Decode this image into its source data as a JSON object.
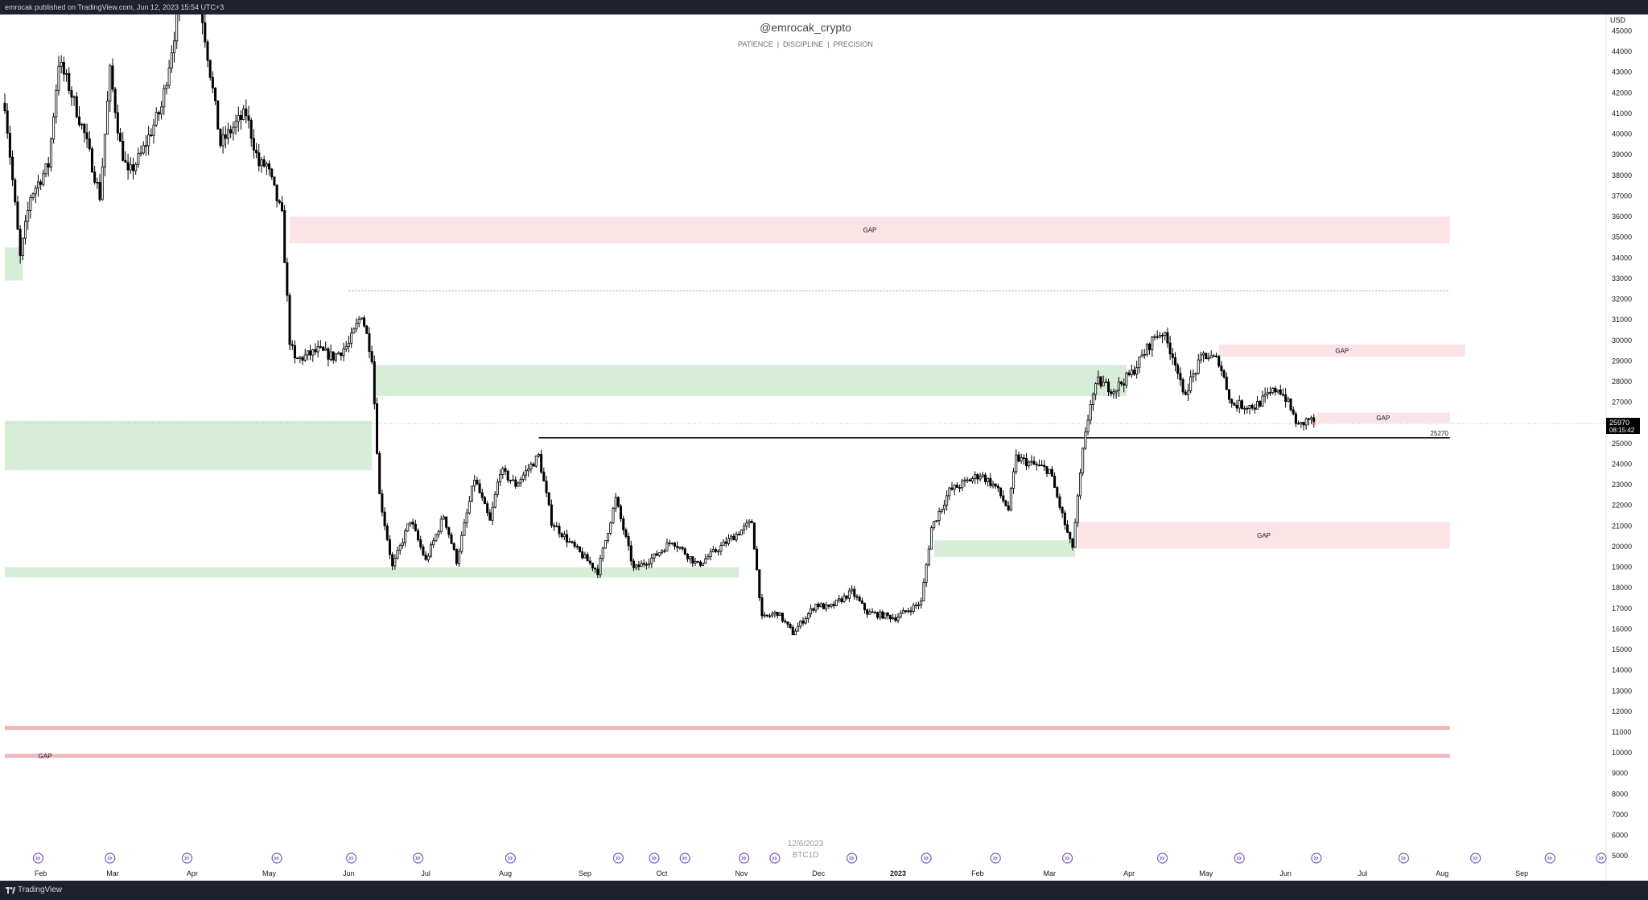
{
  "publish_info": "emrocak published on TradingView.com, Jun 12, 2023 15:54 UTC+3",
  "brand": "TradingView",
  "watermark": {
    "title": "@emrocak_crypto",
    "subtitle": "PATIENCE  |  DISCIPLINE  |  PRECISION"
  },
  "overlay_date": "12/6/2023",
  "overlay_symbol": "BTC1D",
  "colors": {
    "gap_red": "#fbe3e6",
    "gap_red_strong": "#f1b7bd",
    "zone_green": "#d6edd8",
    "up_candle": "#ffffff",
    "down_candle": "#000000",
    "price_tag_bg": "#000000",
    "event_icon": "#7e57c2"
  },
  "chart_data": {
    "type": "candlestick",
    "symbol": "BTC",
    "timeframe": "1D",
    "currency": "USD",
    "ylim": [
      4500,
      45800
    ],
    "yticks": [
      5000,
      6000,
      7000,
      8000,
      9000,
      10000,
      11000,
      12000,
      13000,
      14000,
      15000,
      16000,
      17000,
      18000,
      19000,
      20000,
      21000,
      22000,
      23000,
      24000,
      25000,
      26000,
      27000,
      28000,
      29000,
      30000,
      31000,
      32000,
      33000,
      34000,
      35000,
      36000,
      37000,
      38000,
      39000,
      40000,
      41000,
      42000,
      43000,
      44000,
      45000
    ],
    "xlim": [
      "2022-01-18",
      "2023-10-02"
    ],
    "x_ticks": [
      {
        "date": "2022-02-01",
        "label": "Feb"
      },
      {
        "date": "2022-03-01",
        "label": "Mar"
      },
      {
        "date": "2022-04-01",
        "label": "Apr"
      },
      {
        "date": "2022-05-01",
        "label": "May"
      },
      {
        "date": "2022-06-01",
        "label": "Jun"
      },
      {
        "date": "2022-07-01",
        "label": "Jul"
      },
      {
        "date": "2022-08-01",
        "label": "Aug"
      },
      {
        "date": "2022-09-01",
        "label": "Sep"
      },
      {
        "date": "2022-10-01",
        "label": "Oct"
      },
      {
        "date": "2022-11-01",
        "label": "Nov"
      },
      {
        "date": "2022-12-01",
        "label": "Dec"
      },
      {
        "date": "2023-01-01",
        "label": "2023",
        "bold": true
      },
      {
        "date": "2023-02-01",
        "label": "Feb"
      },
      {
        "date": "2023-03-01",
        "label": "Mar"
      },
      {
        "date": "2023-04-01",
        "label": "Apr"
      },
      {
        "date": "2023-05-01",
        "label": "May"
      },
      {
        "date": "2023-06-01",
        "label": "Jun"
      },
      {
        "date": "2023-07-01",
        "label": "Jul"
      },
      {
        "date": "2023-08-01",
        "label": "Aug"
      },
      {
        "date": "2023-09-01",
        "label": "Sep"
      }
    ],
    "anchors": [
      [
        "2022-01-18",
        41500
      ],
      [
        "2022-01-22",
        36500
      ],
      [
        "2022-01-24",
        34000
      ],
      [
        "2022-01-28",
        37000
      ],
      [
        "2022-02-04",
        38500
      ],
      [
        "2022-02-08",
        43500
      ],
      [
        "2022-02-12",
        42300
      ],
      [
        "2022-02-18",
        40000
      ],
      [
        "2022-02-24",
        37000
      ],
      [
        "2022-02-28",
        43000
      ],
      [
        "2022-03-04",
        39500
      ],
      [
        "2022-03-07",
        38000
      ],
      [
        "2022-03-12",
        39000
      ],
      [
        "2022-03-20",
        41300
      ],
      [
        "2022-03-28",
        47000
      ],
      [
        "2022-04-04",
        46500
      ],
      [
        "2022-04-08",
        43000
      ],
      [
        "2022-04-12",
        39500
      ],
      [
        "2022-04-18",
        40500
      ],
      [
        "2022-04-22",
        41000
      ],
      [
        "2022-04-27",
        38500
      ],
      [
        "2022-04-30",
        38500
      ],
      [
        "2022-05-06",
        36000
      ],
      [
        "2022-05-09",
        30000
      ],
      [
        "2022-05-11",
        29000
      ],
      [
        "2022-05-20",
        29500
      ],
      [
        "2022-05-26",
        29200
      ],
      [
        "2022-06-01",
        29800
      ],
      [
        "2022-06-06",
        31300
      ],
      [
        "2022-06-10",
        29200
      ],
      [
        "2022-06-13",
        22500
      ],
      [
        "2022-06-18",
        19000
      ],
      [
        "2022-06-25",
        21300
      ],
      [
        "2022-07-01",
        19300
      ],
      [
        "2022-07-08",
        21500
      ],
      [
        "2022-07-13",
        19300
      ],
      [
        "2022-07-20",
        23300
      ],
      [
        "2022-07-26",
        21200
      ],
      [
        "2022-07-30",
        23700
      ],
      [
        "2022-08-05",
        23000
      ],
      [
        "2022-08-14",
        24400
      ],
      [
        "2022-08-19",
        21200
      ],
      [
        "2022-08-26",
        20200
      ],
      [
        "2022-09-06",
        18800
      ],
      [
        "2022-09-13",
        22300
      ],
      [
        "2022-09-20",
        18900
      ],
      [
        "2022-09-28",
        19500
      ],
      [
        "2022-10-05",
        20300
      ],
      [
        "2022-10-15",
        19100
      ],
      [
        "2022-10-25",
        20100
      ],
      [
        "2022-11-05",
        21200
      ],
      [
        "2022-11-09",
        16500
      ],
      [
        "2022-11-15",
        16800
      ],
      [
        "2022-11-21",
        15800
      ],
      [
        "2022-11-30",
        17200
      ],
      [
        "2022-12-05",
        17000
      ],
      [
        "2022-12-14",
        17800
      ],
      [
        "2022-12-20",
        16800
      ],
      [
        "2022-12-31",
        16550
      ],
      [
        "2023-01-10",
        17300
      ],
      [
        "2023-01-14",
        20900
      ],
      [
        "2023-01-21",
        22700
      ],
      [
        "2023-02-02",
        23500
      ],
      [
        "2023-02-08",
        22900
      ],
      [
        "2023-02-13",
        21800
      ],
      [
        "2023-02-16",
        24300
      ],
      [
        "2023-02-22",
        24000
      ],
      [
        "2023-03-01",
        23700
      ],
      [
        "2023-03-09",
        20200
      ],
      [
        "2023-03-10",
        20000
      ],
      [
        "2023-03-14",
        24600
      ],
      [
        "2023-03-17",
        27000
      ],
      [
        "2023-03-20",
        28000
      ],
      [
        "2023-03-26",
        27600
      ],
      [
        "2023-04-02",
        28400
      ],
      [
        "2023-04-11",
        30200
      ],
      [
        "2023-04-14",
        30400
      ],
      [
        "2023-04-19",
        29000
      ],
      [
        "2023-04-22",
        27300
      ],
      [
        "2023-04-30",
        29300
      ],
      [
        "2023-05-06",
        29000
      ],
      [
        "2023-05-11",
        26900
      ],
      [
        "2023-05-20",
        26800
      ],
      [
        "2023-05-29",
        27700
      ],
      [
        "2023-06-01",
        27200
      ],
      [
        "2023-06-06",
        25800
      ],
      [
        "2023-06-10",
        26200
      ],
      [
        "2023-06-12",
        26000
      ]
    ],
    "last_price": 25970,
    "countdown": "08:15:42",
    "gaps": [
      {
        "label": "GAP",
        "from": "2022-05-09",
        "to": "2023-08-04",
        "low": 34700,
        "high": 36000
      },
      {
        "label": "GAP",
        "from": "2023-05-06",
        "to": "2023-08-10",
        "low": 29200,
        "high": 29800
      },
      {
        "label": "GAP",
        "from": "2023-06-13",
        "to": "2023-08-04",
        "low": 26000,
        "high": 26500
      },
      {
        "label": "GAP",
        "from": "2023-03-12",
        "to": "2023-08-04",
        "low": 19900,
        "high": 21200
      },
      {
        "label": "",
        "from": "2022-01-18",
        "to": "2023-08-04",
        "low": 11100,
        "high": 11300,
        "strong": true
      },
      {
        "label": "GAP",
        "from": "2022-01-18",
        "to": "2023-08-04",
        "low": 9750,
        "high": 9950,
        "strong": true
      }
    ],
    "zones": [
      {
        "from": "2022-01-18",
        "to": "2022-01-25",
        "low": 32900,
        "high": 34500
      },
      {
        "from": "2022-06-11",
        "to": "2023-03-31",
        "low": 27300,
        "high": 28800
      },
      {
        "from": "2022-01-18",
        "to": "2022-06-10",
        "low": 23700,
        "high": 26100
      },
      {
        "from": "2022-01-18",
        "to": "2022-10-31",
        "low": 18500,
        "high": 19000
      },
      {
        "from": "2023-01-15",
        "to": "2023-03-11",
        "low": 19500,
        "high": 20300
      }
    ],
    "levels": [
      {
        "price": 25270,
        "from": "2022-08-14",
        "to": "2023-08-04",
        "label": "25270",
        "style": "solid"
      },
      {
        "price": 32400,
        "from": "2022-06-01",
        "to": "2023-08-04",
        "style": "dotted"
      }
    ],
    "event_dates": [
      "2022-01-31",
      "2022-02-28",
      "2022-03-30",
      "2022-05-04",
      "2022-06-02",
      "2022-06-28",
      "2022-08-03",
      "2022-09-14",
      "2022-09-28",
      "2022-10-10",
      "2022-11-02",
      "2022-11-14",
      "2022-12-14",
      "2023-01-12",
      "2023-02-08",
      "2023-03-08",
      "2023-04-14",
      "2023-05-14",
      "2023-06-13",
      "2023-07-17",
      "2023-08-14",
      "2023-09-12",
      "2023-10-02"
    ]
  }
}
